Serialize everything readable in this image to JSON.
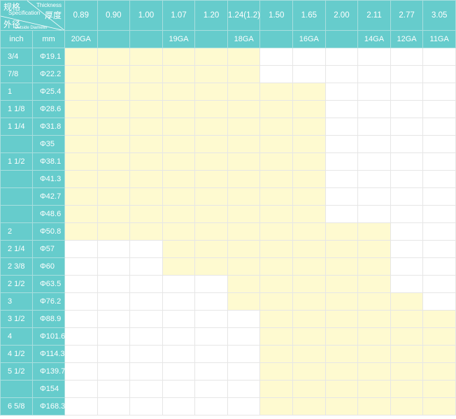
{
  "header": {
    "spec_cn": "规格",
    "spec_en": "Specification",
    "thickness_en": "Thickness",
    "thickness_cn": "厚度",
    "od_cn": "外径",
    "od_en": "Outside Diameter",
    "inch_label": "inch",
    "mm_label": "mm",
    "thicknesses": [
      "0.89",
      "0.90",
      "1.00",
      "1.07",
      "1.20",
      "1.24(1.2)",
      "1.50",
      "1.65",
      "2.00",
      "2.11",
      "2.77",
      "3.05"
    ],
    "gauges": [
      "20GA",
      "",
      "",
      "19GA",
      "",
      "18GA",
      "",
      "16GA",
      "",
      "14GA",
      "12GA",
      "11GA"
    ]
  },
  "colors": {
    "header": "#66cccc",
    "available": "#fefad0",
    "empty": "#ffffff"
  },
  "rows": [
    {
      "inch": "3/4",
      "mm": "Φ19.1",
      "available_from": "0.89",
      "available_to": "1.24(1.2)"
    },
    {
      "inch": "7/8",
      "mm": "Φ22.2",
      "available_from": "0.89",
      "available_to": "1.24(1.2)"
    },
    {
      "inch": "1",
      "mm": "Φ25.4",
      "available_from": "0.89",
      "available_to": "1.65"
    },
    {
      "inch": "1 1/8",
      "mm": "Φ28.6",
      "available_from": "0.89",
      "available_to": "1.65"
    },
    {
      "inch": "1 1/4",
      "mm": "Φ31.8",
      "available_from": "0.89",
      "available_to": "1.65"
    },
    {
      "inch": "",
      "mm": "Φ35",
      "available_from": "0.89",
      "available_to": "1.65"
    },
    {
      "inch": "1 1/2",
      "mm": "Φ38.1",
      "available_from": "0.89",
      "available_to": "1.65"
    },
    {
      "inch": "",
      "mm": "Φ41.3",
      "available_from": "0.89",
      "available_to": "1.65"
    },
    {
      "inch": "",
      "mm": "Φ42.7",
      "available_from": "0.89",
      "available_to": "1.65"
    },
    {
      "inch": "",
      "mm": "Φ48.6",
      "available_from": "0.89",
      "available_to": "1.65"
    },
    {
      "inch": "2",
      "mm": "Φ50.8",
      "available_from": "0.89",
      "available_to": "2.11"
    },
    {
      "inch": "2 1/4",
      "mm": "Φ57",
      "available_from": "1.07",
      "available_to": "2.11"
    },
    {
      "inch": "2 3/8",
      "mm": "Φ60",
      "available_from": "1.07",
      "available_to": "2.11"
    },
    {
      "inch": "2 1/2",
      "mm": "Φ63.5",
      "available_from": "1.24(1.2)",
      "available_to": "2.11"
    },
    {
      "inch": "3",
      "mm": "Φ76.2",
      "available_from": "1.24(1.2)",
      "available_to": "2.77"
    },
    {
      "inch": "3 1/2",
      "mm": "Φ88.9",
      "available_from": "1.50",
      "available_to": "3.05"
    },
    {
      "inch": "4",
      "mm": "Φ101.6",
      "available_from": "1.50",
      "available_to": "3.05"
    },
    {
      "inch": "4 1/2",
      "mm": "Φ114.3",
      "available_from": "1.50",
      "available_to": "3.05"
    },
    {
      "inch": "5 1/2",
      "mm": "Φ139.7",
      "available_from": "1.50",
      "available_to": "3.05"
    },
    {
      "inch": "",
      "mm": "Φ154",
      "available_from": "1.50",
      "available_to": "3.05"
    },
    {
      "inch": "6 5/8",
      "mm": "Φ168.3",
      "available_from": "1.50",
      "available_to": "3.05"
    }
  ]
}
